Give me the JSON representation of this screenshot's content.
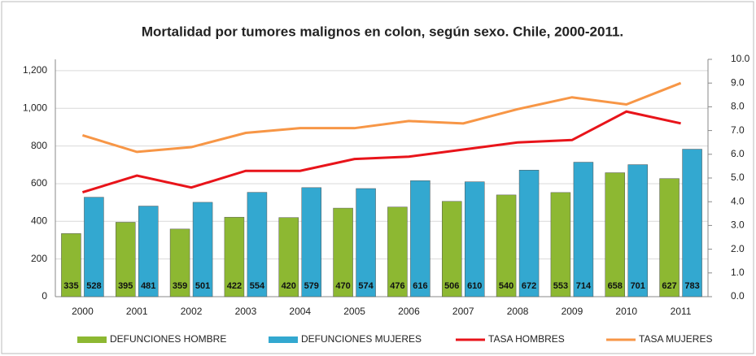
{
  "chart_data": {
    "type": "bar_line",
    "title": "Mortalidad por tumores malignos en colon, según sexo. Chile, 2000-2011.",
    "categories": [
      "2000",
      "2001",
      "2002",
      "2003",
      "2004",
      "2005",
      "2006",
      "2007",
      "2008",
      "2009",
      "2010",
      "2011"
    ],
    "series": [
      {
        "name": "DEFUNCIONES HOMBRE",
        "type": "bar",
        "color": "#8db832",
        "values": [
          335,
          395,
          359,
          422,
          420,
          470,
          476,
          506,
          540,
          553,
          658,
          627
        ]
      },
      {
        "name": "DEFUNCIONES MUJERES",
        "type": "bar",
        "color": "#33a8d0",
        "values": [
          528,
          481,
          501,
          554,
          579,
          574,
          616,
          610,
          672,
          714,
          701,
          783
        ]
      },
      {
        "name": "TASA HOMBRES",
        "type": "line",
        "axis": "y2",
        "color": "#e8141a",
        "values": [
          4.4,
          5.1,
          4.6,
          5.3,
          5.3,
          5.8,
          5.9,
          6.2,
          6.5,
          6.6,
          7.8,
          7.3
        ]
      },
      {
        "name": "TASA MUJERES",
        "type": "line",
        "axis": "y2",
        "color": "#f79646",
        "values": [
          6.8,
          6.1,
          6.3,
          6.9,
          7.1,
          7.1,
          7.4,
          7.3,
          7.9,
          8.4,
          8.1,
          9.0
        ]
      }
    ],
    "ylim": [
      0,
      1260
    ],
    "yticks": [
      0,
      200,
      400,
      600,
      800,
      {
        "value": 1000,
        "label": "1,000"
      },
      {
        "value": 1200,
        "label": "1,200"
      }
    ],
    "y2lim": [
      0,
      10
    ],
    "y2ticks": [
      {
        "value": 0,
        "label": "0.0"
      },
      {
        "value": 1,
        "label": "1.0"
      },
      {
        "value": 2,
        "label": "2.0"
      },
      {
        "value": 3,
        "label": "3.0"
      },
      {
        "value": 4,
        "label": "4.0"
      },
      {
        "value": 5,
        "label": "5.0"
      },
      {
        "value": 6,
        "label": "6.0"
      },
      {
        "value": 7,
        "label": "7.0"
      },
      {
        "value": 8,
        "label": "8.0"
      },
      {
        "value": 9,
        "label": "9.0"
      },
      {
        "value": 10,
        "label": "10.0"
      }
    ],
    "grid": true
  }
}
